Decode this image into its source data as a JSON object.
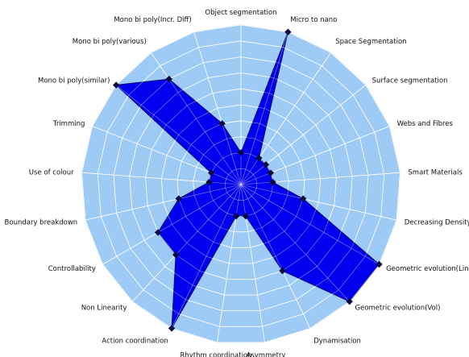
{
  "chart_data": {
    "type": "radar",
    "title": "",
    "max_value": 5,
    "rings": 10,
    "grid": true,
    "legend": "none",
    "colors": {
      "background": "#9dcbf5",
      "fill": "#0000ee",
      "grid": "#ffffff",
      "outline": "#0a0a6a",
      "marker": "#0a0a40",
      "label": "#111111"
    },
    "axes": [
      "Object segmentation",
      "Micro to nano",
      "Space Segmentation",
      "Surface segmentation",
      "Webs and Fibres",
      "Smart Materials",
      "Decreasing Density",
      "Geometric evolution(Linear)",
      "Geometric evolution(Vol)",
      "Dynamisation",
      "Asymmetry",
      "Rhythm coordination",
      "Action coordination",
      "Non Linearity",
      "Controllability",
      "Boundary breakdown",
      "Use of colour",
      "Trimming",
      "Mono bi poly(similar)",
      "Mono bi poly(various)",
      "Mono bi poly(Incr. Diff)"
    ],
    "series": [
      {
        "values": [
          1,
          5,
          1,
          1,
          1,
          1,
          2,
          5,
          5,
          3,
          1,
          1,
          5,
          3,
          3,
          2,
          1,
          1,
          5,
          4,
          2
        ]
      }
    ]
  }
}
